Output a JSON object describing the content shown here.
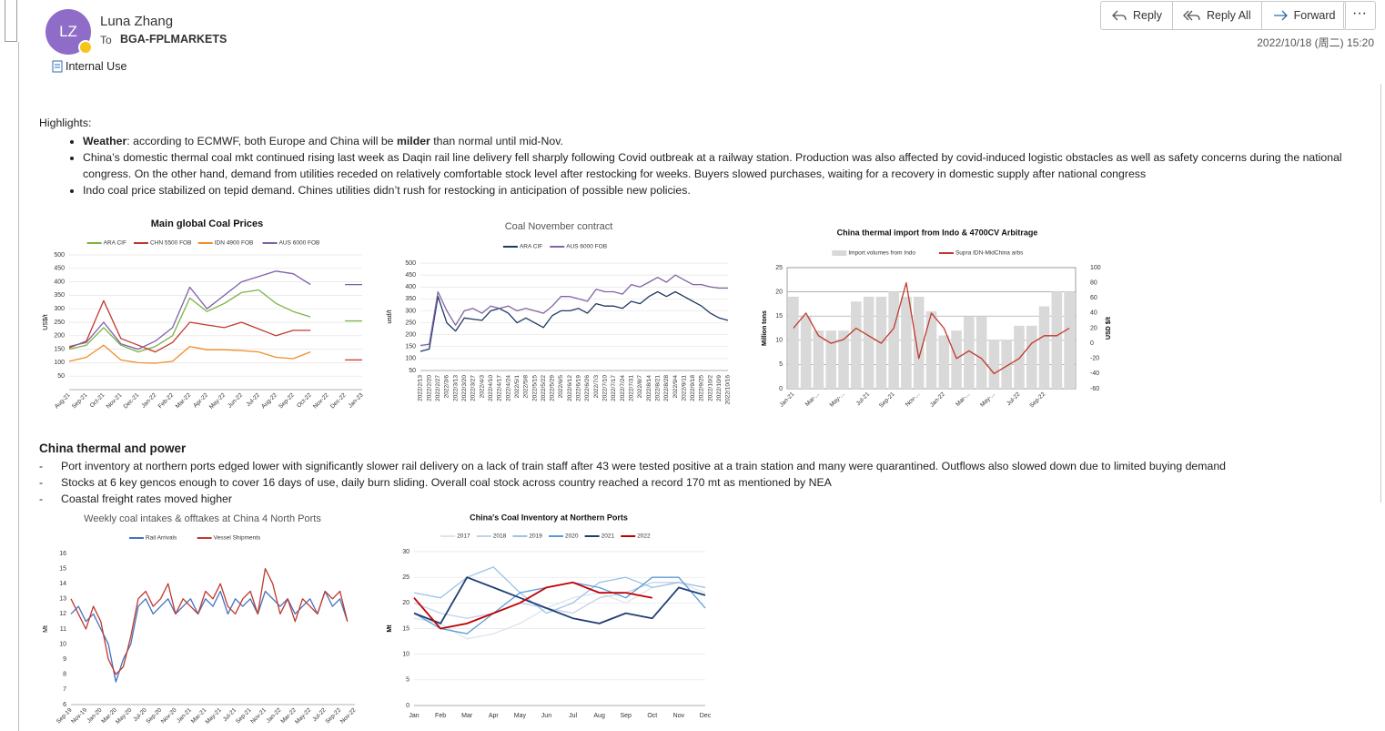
{
  "header": {
    "initials": "LZ",
    "sender": "Luna Zhang",
    "to_label": "To",
    "recipient": "BGA-FPLMARKETS",
    "sensitivity": "Internal Use",
    "date": "2022/10/18 (周二) 15:20"
  },
  "actions": [
    "Reply",
    "Reply All",
    "Forward"
  ],
  "body": {
    "highlights_heading": "Highlights:",
    "highlights": [
      [
        "Weather",
        ": according to ECMWF, both Europe and China will be ",
        "milder",
        " than normal until mid-Nov."
      ],
      "China’s domestic thermal coal mkt continued rising last week as Daqin rail line delivery fell sharply following Covid outbreak at a railway station. Production was also affected by covid-induced logistic obstacles as well as safety concerns during the national congress. On the other hand, demand from utilities receded on relatively comfortable stock level after restocking for weeks. Buyers slowed purchases, waiting for a recovery in domestic supply after national congress",
      "Indo coal price stabilized on tepid demand. Chines utilities didn’t rush for restocking in anticipation of possible new policies."
    ],
    "section_heading": "China thermal and power",
    "section_items": [
      "Port inventory at northern ports edged lower with significantly slower rail delivery on a lack of train staff after 43 were tested positive at a train station and many were quarantined. Outflows also slowed down due to limited buying demand",
      "Stocks at 6 key gencos enough to cover 16  days of use, daily burn sliding. Overall coal stock across country reached a record 170 mt as mentioned by NEA",
      "Coastal freight rates moved higher"
    ]
  },
  "charts": [
    {
      "type": "line",
      "title": "Main global Coal Prices",
      "ylabel": "US$/t",
      "grid": true,
      "ylim": [
        0,
        500
      ],
      "yticks": [
        50,
        100,
        150,
        200,
        250,
        300,
        350,
        400,
        450,
        500
      ],
      "categories": [
        "Aug-21",
        "Sep-21",
        "Oct-21",
        "Nov-21",
        "Dec-21",
        "Jan-22",
        "Feb-22",
        "Mar-22",
        "Apr-22",
        "May-22",
        "Jun-22",
        "Jul-22",
        "Aug-22",
        "Sep-22",
        "Oct-22",
        "Nov-22",
        "Dec-22",
        "Jan-23"
      ],
      "series": [
        {
          "name": "ARA CIF",
          "color": "#7cb342",
          "values": [
            150,
            165,
            230,
            165,
            140,
            160,
            200,
            340,
            290,
            320,
            360,
            370,
            320,
            290,
            270,
            null,
            255,
            255
          ]
        },
        {
          "name": "CHN 5500 FOB",
          "color": "#c0392b",
          "values": [
            155,
            180,
            330,
            190,
            165,
            140,
            175,
            250,
            240,
            230,
            250,
            225,
            200,
            220,
            220,
            null,
            110,
            110
          ]
        },
        {
          "name": "IDN 4900 FOB",
          "color": "#f28c28",
          "values": [
            105,
            120,
            165,
            110,
            100,
            98,
            105,
            160,
            148,
            148,
            145,
            140,
            120,
            115,
            140,
            null,
            null,
            null
          ]
        },
        {
          "name": "AUS 6000 FOB",
          "color": "#7f5fa8",
          "values": [
            160,
            175,
            250,
            170,
            150,
            180,
            230,
            380,
            300,
            350,
            400,
            420,
            440,
            430,
            390,
            null,
            390,
            390
          ]
        }
      ]
    },
    {
      "type": "line",
      "title": "Coal November contract",
      "ylabel": "usd/t",
      "grid": true,
      "ylim": [
        50,
        500
      ],
      "yticks": [
        50,
        100,
        150,
        200,
        250,
        300,
        350,
        400,
        450,
        500
      ],
      "categories": [
        "2022/2/13",
        "2022/2/20",
        "2022/2/27",
        "2022/3/6",
        "2022/3/13",
        "2022/3/20",
        "2022/3/27",
        "2022/4/3",
        "2022/4/10",
        "2022/4/17",
        "2022/4/24",
        "2022/5/1",
        "2022/5/8",
        "2022/5/15",
        "2022/5/22",
        "2022/5/29",
        "2022/6/5",
        "2022/6/12",
        "2022/6/19",
        "2022/6/26",
        "2022/7/3",
        "2022/7/10",
        "2022/7/17",
        "2022/7/24",
        "2022/7/31",
        "2022/8/7",
        "2022/8/14",
        "2022/8/21",
        "2022/8/28",
        "2022/9/4",
        "2022/9/11",
        "2022/9/18",
        "2022/9/25",
        "2022/10/2",
        "2022/10/9",
        "2022/10/16"
      ],
      "series": [
        {
          "name": "ARA CIF",
          "color": "#1f3864",
          "values": [
            130,
            140,
            360,
            250,
            215,
            270,
            265,
            260,
            300,
            310,
            290,
            250,
            270,
            250,
            230,
            280,
            300,
            300,
            310,
            290,
            330,
            320,
            320,
            310,
            340,
            330,
            360,
            380,
            360,
            380,
            360,
            340,
            320,
            290,
            270,
            260
          ]
        },
        {
          "name": "AUS 6000 FOB",
          "color": "#8064a2",
          "values": [
            155,
            160,
            380,
            300,
            240,
            300,
            310,
            290,
            320,
            310,
            320,
            300,
            310,
            300,
            290,
            320,
            360,
            360,
            350,
            340,
            390,
            380,
            380,
            370,
            410,
            400,
            420,
            440,
            420,
            450,
            430,
            410,
            410,
            400,
            395,
            395
          ]
        }
      ]
    },
    {
      "type": "bar",
      "title": "China thermal import from Indo & 4700CV Arbitrage",
      "ylabel": "Million tons",
      "y2label": "USD $/t",
      "grid": true,
      "ylim": [
        0,
        25
      ],
      "yticks": [
        0,
        5,
        10,
        15,
        20,
        25
      ],
      "y2lim": [
        -60,
        100
      ],
      "y2ticks": [
        -60,
        -40,
        -20,
        0,
        20,
        40,
        60,
        80,
        100
      ],
      "categories": [
        "Jan-21",
        null,
        "Mar-...",
        null,
        "May-...",
        null,
        "Jul-21",
        null,
        "Sep-21",
        null,
        "Nov-...",
        null,
        "Jan-22",
        null,
        "Mar-...",
        null,
        "May-...",
        null,
        "Jul-22",
        null,
        "Sep-22",
        null,
        null
      ],
      "series": [
        {
          "name": "Import volumes from Indo",
          "color": "#d9d9d9",
          "values": [
            19,
            15,
            12,
            12,
            12,
            18,
            19,
            19,
            20,
            19,
            19,
            16,
            11,
            12,
            15,
            15,
            10,
            10,
            13,
            13,
            17,
            20,
            20
          ]
        },
        {
          "name": "Supra IDN-MidChina arbs",
          "color": "#c0392b",
          "type": "line",
          "axis": "y2",
          "values": [
            20,
            40,
            10,
            0,
            5,
            20,
            10,
            0,
            20,
            80,
            -20,
            40,
            20,
            -20,
            -10,
            -20,
            -40,
            -30,
            -20,
            0,
            10,
            10,
            20
          ]
        }
      ]
    },
    {
      "type": "line",
      "title": "Weekly coal intakes & offtakes at China 4 North Ports",
      "ylabel": "Mt",
      "grid": false,
      "ylim": [
        6,
        16
      ],
      "yticks": [
        6,
        7,
        8,
        9,
        10,
        11,
        12,
        13,
        14,
        15,
        16
      ],
      "categories": [
        "Sep-19",
        null,
        "Nov-19",
        null,
        "Jan-20",
        null,
        "Mar-20",
        null,
        "May-20",
        null,
        "Jul-20",
        null,
        "Sep-20",
        null,
        "Nov-20",
        null,
        "Jan-21",
        null,
        "Mar-21",
        null,
        "May-21",
        null,
        "Jul-21",
        null,
        "Sep-21",
        null,
        "Nov-21",
        null,
        "Jan-22",
        null,
        "Mar-22",
        null,
        "May-22",
        null,
        "Jul-22",
        null,
        "Sep-22",
        null,
        "Nov-22"
      ],
      "series": [
        {
          "name": "Rail Arrivals",
          "color": "#4472c4",
          "values": [
            12,
            12.5,
            11.5,
            12,
            11,
            10,
            7.5,
            9,
            10,
            12.5,
            13,
            12,
            12.5,
            13,
            12,
            12.5,
            13,
            12,
            13,
            12.5,
            13.5,
            12,
            13,
            12.5,
            13,
            12,
            13.5,
            13,
            12.5,
            13,
            12,
            12.5,
            13,
            12,
            13.5,
            12.5,
            13,
            11.5,
            null
          ]
        },
        {
          "name": "Vessel Shipments",
          "color": "#c0392b",
          "values": [
            13,
            12,
            11,
            12.5,
            11.5,
            9,
            8,
            8.5,
            10.5,
            13,
            13.5,
            12.5,
            13,
            14,
            12,
            13,
            12.5,
            12,
            13.5,
            13,
            14,
            12.5,
            12,
            13,
            13.5,
            12,
            15,
            14,
            12,
            13,
            11.5,
            13,
            12.5,
            12,
            13.5,
            13,
            13.5,
            11.5,
            null
          ]
        }
      ]
    },
    {
      "type": "line",
      "title": "China's Coal Inventory at Northern Ports",
      "ylabel": "Mt",
      "grid": true,
      "ylim": [
        0,
        30
      ],
      "yticks": [
        0,
        5,
        10,
        15,
        20,
        25,
        30
      ],
      "categories": [
        "Jan",
        "Feb",
        "Mar",
        "Apr",
        "May",
        "Jun",
        "Jul",
        "Aug",
        "Sep",
        "Oct",
        "Nov",
        "Dec"
      ],
      "series": [
        {
          "name": "2017",
          "color": "#dde3ee",
          "values": [
            17,
            16,
            13,
            14,
            16,
            19,
            21,
            22,
            20,
            23,
            24,
            22
          ]
        },
        {
          "name": "2018",
          "color": "#c3d2e8",
          "values": [
            20,
            18,
            17,
            18,
            20,
            19,
            18,
            21,
            22,
            24,
            24,
            23
          ]
        },
        {
          "name": "2019",
          "color": "#9dc3e6",
          "values": [
            22,
            21,
            25,
            27,
            22,
            18,
            20,
            24,
            25,
            23,
            24,
            23
          ]
        },
        {
          "name": "2020",
          "color": "#5b9bd5",
          "values": [
            18,
            15,
            14,
            18,
            22,
            23,
            24,
            23,
            21,
            25,
            25,
            19
          ]
        },
        {
          "name": "2021",
          "color": "#1f3f74",
          "values": [
            18,
            16,
            25,
            23,
            21,
            19,
            17,
            16,
            18,
            17,
            23,
            21.5
          ]
        },
        {
          "name": "2022",
          "color": "#c00000",
          "values": [
            21,
            15,
            16,
            18,
            20,
            23,
            24,
            22,
            22,
            21,
            null,
            null
          ]
        }
      ]
    }
  ]
}
